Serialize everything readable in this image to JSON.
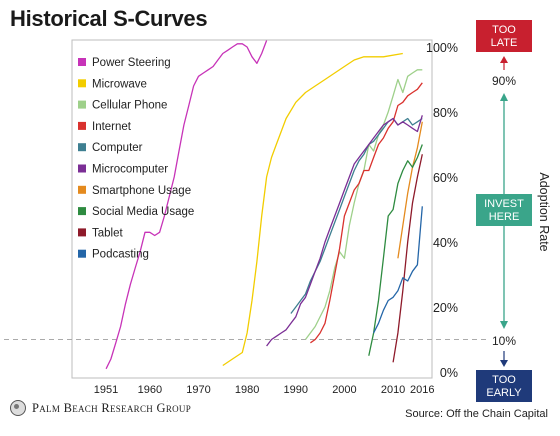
{
  "title": "Historical S-Curves",
  "source": "Source: Off the Chain Capital",
  "logo_text": "Palm Beach Research Group",
  "chart_data": {
    "type": "line",
    "title": "Historical S-Curves",
    "ylabel": "Adoption Rate",
    "xlim": [
      1944,
      2018
    ],
    "ylim": [
      0,
      100
    ],
    "x_ticks": [
      1951,
      1960,
      1970,
      1980,
      1990,
      2000,
      2010,
      2016
    ],
    "y_ticks": [
      0,
      20,
      40,
      60,
      80,
      100
    ],
    "y_tick_labels": [
      "0%",
      "20%",
      "40%",
      "60%",
      "80%",
      "100%"
    ],
    "grid": false,
    "legend_position": "top-left",
    "reference_line": {
      "y": 10,
      "style": "dashed"
    },
    "annotations": {
      "too_late": "TOO LATE",
      "too_early": "TOO EARLY",
      "invest_here": "INVEST HERE",
      "upper_mark": "90%",
      "lower_mark": "10%"
    },
    "colors": {
      "too_late": "#c8202f",
      "too_early": "#1f3a7a",
      "invest_here": "#3aa58a",
      "arrow_up": "#c8202f",
      "arrow_mid": "#3aa58a",
      "arrow_down": "#1f3a7a"
    },
    "series": [
      {
        "name": "Power Steering",
        "color": "#c733b8",
        "x": [
          1951,
          1952,
          1953,
          1954,
          1955,
          1956,
          1957,
          1958,
          1959,
          1960,
          1961,
          1962,
          1963,
          1964,
          1965,
          1966,
          1967,
          1968,
          1969,
          1970,
          1971,
          1972,
          1973,
          1974,
          1975,
          1976,
          1977,
          1978,
          1979,
          1980,
          1981,
          1982,
          1983,
          1984
        ],
        "y": [
          1,
          4,
          9,
          14,
          21,
          27,
          32,
          37,
          43,
          43,
          42,
          43,
          48,
          54,
          60,
          68,
          76,
          82,
          88,
          91,
          92,
          93,
          94,
          96,
          98,
          99,
          100,
          101,
          101,
          100,
          97,
          95,
          98,
          102
        ]
      },
      {
        "name": "Microwave",
        "color": "#f2cd00",
        "x": [
          1975,
          1977,
          1979,
          1980,
          1981,
          1982,
          1983,
          1984,
          1985,
          1986,
          1987,
          1988,
          1990,
          1992,
          1994,
          1996,
          1998,
          2000,
          2002,
          2004,
          2006,
          2008,
          2012
        ],
        "y": [
          2,
          4,
          6,
          12,
          22,
          34,
          48,
          60,
          66,
          70,
          74,
          78,
          83,
          86,
          88,
          90,
          92,
          94,
          96,
          97,
          97,
          97,
          98
        ]
      },
      {
        "name": "Cellular Phone",
        "color": "#9ed08a",
        "x": [
          1992,
          1994,
          1996,
          1997,
          1998,
          1999,
          2000,
          2001,
          2002,
          2003,
          2004,
          2005,
          2006,
          2007,
          2008,
          2009,
          2010,
          2011,
          2012,
          2013,
          2014,
          2015,
          2016
        ],
        "y": [
          10,
          14,
          20,
          25,
          32,
          37,
          35,
          45,
          52,
          58,
          62,
          70,
          68,
          73,
          76,
          80,
          85,
          90,
          86,
          91,
          92,
          93,
          93
        ]
      },
      {
        "name": "Internet",
        "color": "#d9322e",
        "x": [
          1993,
          1994,
          1995,
          1996,
          1997,
          1998,
          1999,
          2000,
          2001,
          2002,
          2003,
          2004,
          2005,
          2006,
          2007,
          2008,
          2009,
          2010,
          2011,
          2012,
          2013,
          2014,
          2015,
          2016
        ],
        "y": [
          9,
          10,
          12,
          15,
          22,
          30,
          38,
          48,
          52,
          56,
          58,
          62,
          62,
          66,
          70,
          72,
          75,
          77,
          82,
          83,
          85,
          86,
          87,
          89
        ]
      },
      {
        "name": "Computer",
        "color": "#3e7f91",
        "x": [
          1989,
          1990,
          1991,
          1992,
          1993,
          1994,
          1995,
          1996,
          1997,
          1998,
          1999,
          2000,
          2001,
          2002,
          2003,
          2004,
          2005,
          2006,
          2007,
          2008,
          2009,
          2010,
          2011,
          2012,
          2013,
          2014,
          2015,
          2016
        ],
        "y": [
          18,
          20,
          22,
          24,
          28,
          31,
          34,
          38,
          42,
          46,
          50,
          54,
          58,
          62,
          65,
          67,
          70,
          71,
          73,
          75,
          77,
          78,
          76,
          77,
          78,
          76,
          77,
          78
        ]
      },
      {
        "name": "Microcomputer",
        "color": "#7b2e95",
        "x": [
          1984,
          1985,
          1986,
          1987,
          1988,
          1989,
          1990,
          1991,
          1992,
          1993,
          1994,
          1995,
          1996,
          1997,
          1998,
          1999,
          2000,
          2001,
          2002,
          2003,
          2004,
          2005,
          2006,
          2007,
          2008,
          2009,
          2010,
          2011,
          2012,
          2013,
          2014,
          2015,
          2016
        ],
        "y": [
          8,
          10,
          11,
          12,
          13,
          15,
          17,
          21,
          23,
          27,
          31,
          35,
          40,
          44,
          48,
          52,
          56,
          60,
          64,
          66,
          68,
          70,
          72,
          74,
          76,
          77,
          78,
          76,
          77,
          76,
          75,
          74,
          79
        ]
      },
      {
        "name": "Smartphone Usage",
        "color": "#e48a1e",
        "x": [
          2011,
          2012,
          2013,
          2014,
          2015,
          2016
        ],
        "y": [
          35,
          45,
          55,
          63,
          69,
          77
        ]
      },
      {
        "name": "Social Media Usage",
        "color": "#2e8b40",
        "x": [
          2005,
          2006,
          2007,
          2008,
          2009,
          2010,
          2011,
          2012,
          2013,
          2014,
          2015,
          2016
        ],
        "y": [
          5,
          12,
          22,
          35,
          48,
          50,
          58,
          62,
          65,
          63,
          66,
          70
        ]
      },
      {
        "name": "Tablet",
        "color": "#8e1a2a",
        "x": [
          2010,
          2011,
          2012,
          2013,
          2014,
          2015,
          2016
        ],
        "y": [
          3,
          12,
          25,
          40,
          52,
          60,
          67
        ]
      },
      {
        "name": "Podcasting",
        "color": "#2466a8",
        "x": [
          2006,
          2007,
          2008,
          2009,
          2010,
          2011,
          2012,
          2013,
          2014,
          2015,
          2016
        ],
        "y": [
          12,
          15,
          19,
          22,
          23,
          25,
          29,
          28,
          31,
          33,
          51
        ]
      }
    ]
  }
}
